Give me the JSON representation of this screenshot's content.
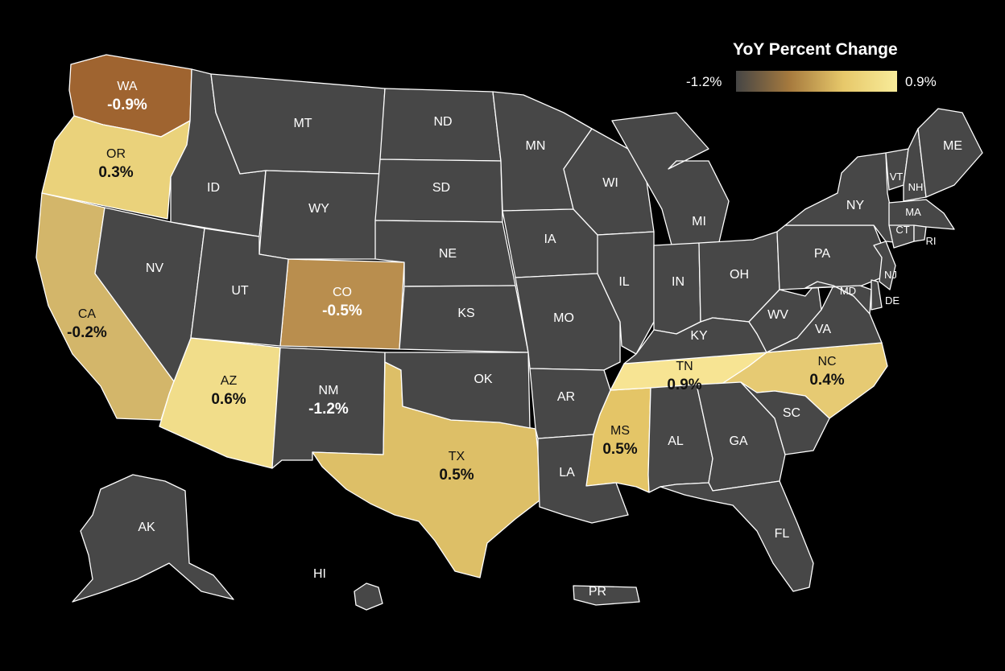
{
  "legend": {
    "title": "YoY Percent Change",
    "min_label": "-1.2%",
    "max_label": "0.9%",
    "gradient": [
      "#454545",
      "#a67a3e",
      "#e7c86a",
      "#f8ec9a"
    ]
  },
  "colors": {
    "no_data": "#474747",
    "border": "#ffffff",
    "background": "#000000"
  },
  "states": {
    "WA": {
      "abbr": "WA",
      "value": "-0.9%",
      "fill": "#9f6430"
    },
    "OR": {
      "abbr": "OR",
      "value": "0.3%",
      "fill": "#ead27b"
    },
    "CA": {
      "abbr": "CA",
      "value": "-0.2%",
      "fill": "#d3b66a"
    },
    "AZ": {
      "abbr": "AZ",
      "value": "0.6%",
      "fill": "#f1dd8a"
    },
    "CO": {
      "abbr": "CO",
      "value": "-0.5%",
      "fill": "#b98e4e"
    },
    "NM": {
      "abbr": "NM",
      "value": "-1.2%",
      "fill": "#474747"
    },
    "TX": {
      "abbr": "TX",
      "value": "0.5%",
      "fill": "#ddbf67"
    },
    "MS": {
      "abbr": "MS",
      "value": "0.5%",
      "fill": "#e4c567"
    },
    "TN": {
      "abbr": "TN",
      "value": "0.9%",
      "fill": "#f7e493"
    },
    "NC": {
      "abbr": "NC",
      "value": "0.4%",
      "fill": "#e6ca73"
    },
    "MT": {
      "abbr": "MT"
    },
    "ID": {
      "abbr": "ID"
    },
    "NV": {
      "abbr": "NV"
    },
    "UT": {
      "abbr": "UT"
    },
    "WY": {
      "abbr": "WY"
    },
    "ND": {
      "abbr": "ND"
    },
    "SD": {
      "abbr": "SD"
    },
    "NE": {
      "abbr": "NE"
    },
    "KS": {
      "abbr": "KS"
    },
    "OK": {
      "abbr": "OK"
    },
    "MN": {
      "abbr": "MN"
    },
    "IA": {
      "abbr": "IA"
    },
    "MO": {
      "abbr": "MO"
    },
    "AR": {
      "abbr": "AR"
    },
    "LA": {
      "abbr": "LA"
    },
    "WI": {
      "abbr": "WI"
    },
    "IL": {
      "abbr": "IL"
    },
    "MI": {
      "abbr": "MI"
    },
    "IN": {
      "abbr": "IN"
    },
    "OH": {
      "abbr": "OH"
    },
    "KY": {
      "abbr": "KY"
    },
    "AL": {
      "abbr": "AL"
    },
    "GA": {
      "abbr": "GA"
    },
    "FL": {
      "abbr": "FL"
    },
    "SC": {
      "abbr": "SC"
    },
    "VA": {
      "abbr": "VA"
    },
    "WV": {
      "abbr": "WV"
    },
    "PA": {
      "abbr": "PA"
    },
    "NY": {
      "abbr": "NY"
    },
    "VT": {
      "abbr": "VT"
    },
    "NH": {
      "abbr": "NH"
    },
    "ME": {
      "abbr": "ME"
    },
    "MA": {
      "abbr": "MA"
    },
    "CT": {
      "abbr": "CT"
    },
    "RI": {
      "abbr": "RI"
    },
    "NJ": {
      "abbr": "NJ"
    },
    "DE": {
      "abbr": "DE"
    },
    "MD": {
      "abbr": "MD"
    },
    "AK": {
      "abbr": "AK"
    },
    "HI": {
      "abbr": "HI"
    },
    "PR": {
      "abbr": "PR"
    }
  }
}
